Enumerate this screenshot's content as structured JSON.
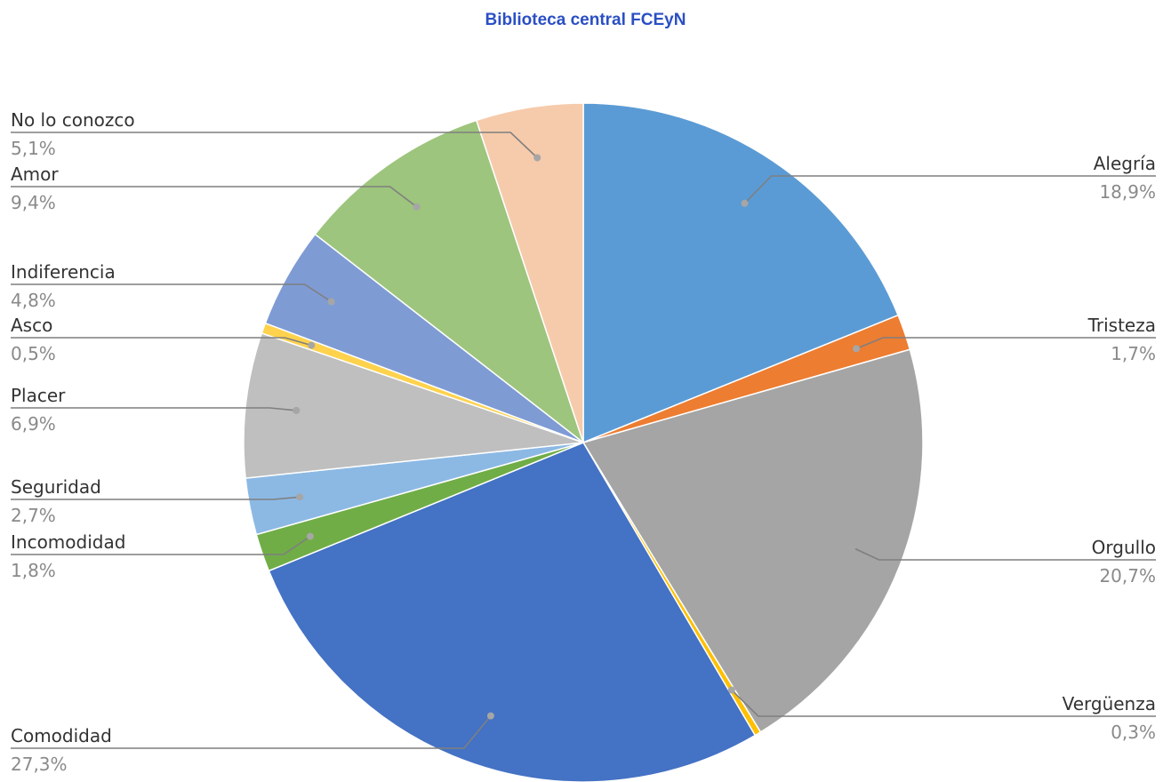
{
  "colors": {
    "title": "#2a4fc4",
    "leader": "#7f7f7f",
    "dot": "#a6a6a6",
    "slice_border": "#ffffff"
  },
  "chart_data": {
    "type": "pie",
    "title": "Biblioteca central FCEyN",
    "start_angle_deg": 0,
    "direction": "clockwise",
    "slices": [
      {
        "label": "Alegría",
        "value": 18.9,
        "value_label": "18,9%",
        "color": "#5b9bd5",
        "label_side": "right"
      },
      {
        "label": "Tristeza",
        "value": 1.7,
        "value_label": "1,7%",
        "color": "#ed7d31",
        "label_side": "right"
      },
      {
        "label": "Orgullo",
        "value": 20.7,
        "value_label": "20,7%",
        "color": "#a5a5a5",
        "label_side": "right"
      },
      {
        "label": "Vergüenza",
        "value": 0.3,
        "value_label": "0,3%",
        "color": "#ffc000",
        "label_side": "right"
      },
      {
        "label": "Comodidad",
        "value": 27.3,
        "value_label": "27,3%",
        "color": "#4472c4",
        "label_side": "left"
      },
      {
        "label": "Incomodidad",
        "value": 1.8,
        "value_label": "1,8%",
        "color": "#70ad47",
        "label_side": "left"
      },
      {
        "label": "Seguridad",
        "value": 2.7,
        "value_label": "2,7%",
        "color": "#8cb9e4",
        "label_side": "left"
      },
      {
        "label": "Placer",
        "value": 6.9,
        "value_label": "6,9%",
        "color": "#bfbfbf",
        "label_side": "left"
      },
      {
        "label": "Asco",
        "value": 0.5,
        "value_label": "0,5%",
        "color": "#ffd24d",
        "label_side": "left"
      },
      {
        "label": "Indiferencia",
        "value": 4.8,
        "value_label": "4,8%",
        "color": "#7f9bd4",
        "label_side": "left"
      },
      {
        "label": "Amor",
        "value": 9.4,
        "value_label": "9,4%",
        "color": "#9dc57d",
        "label_side": "left"
      },
      {
        "label": "No lo conozco",
        "value": 5.1,
        "value_label": "5,1%",
        "color": "#f6cbab",
        "label_side": "left"
      }
    ]
  }
}
